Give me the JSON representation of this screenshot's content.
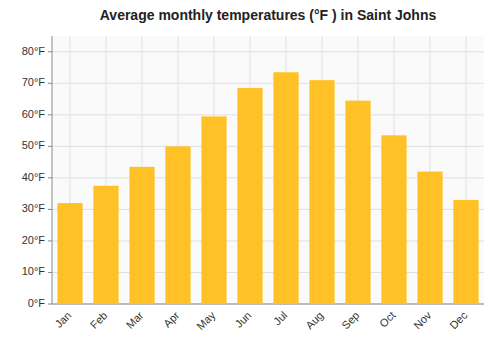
{
  "chart_data": {
    "type": "bar",
    "title": "Average monthly temperatures (°F ) in Saint Johns",
    "categories": [
      "Jan",
      "Feb",
      "Mar",
      "Apr",
      "May",
      "Jun",
      "Jul",
      "Aug",
      "Sep",
      "Oct",
      "Nov",
      "Dec"
    ],
    "values": [
      32,
      37.5,
      43.5,
      50,
      59.5,
      68.5,
      73.5,
      71,
      64.5,
      53.5,
      42,
      33
    ],
    "color": "#FFC125",
    "ylim": [
      0,
      85
    ],
    "yticks": [
      {
        "value": 0,
        "label": "0°F"
      },
      {
        "value": 10,
        "label": "10°F"
      },
      {
        "value": 20,
        "label": "20°F"
      },
      {
        "value": 30,
        "label": "30°F"
      },
      {
        "value": 40,
        "label": "40°F"
      },
      {
        "value": 50,
        "label": "50°F"
      },
      {
        "value": 60,
        "label": "60°F"
      },
      {
        "value": 70,
        "label": "70°F"
      },
      {
        "value": 80,
        "label": "80°F"
      }
    ],
    "grid": true
  }
}
